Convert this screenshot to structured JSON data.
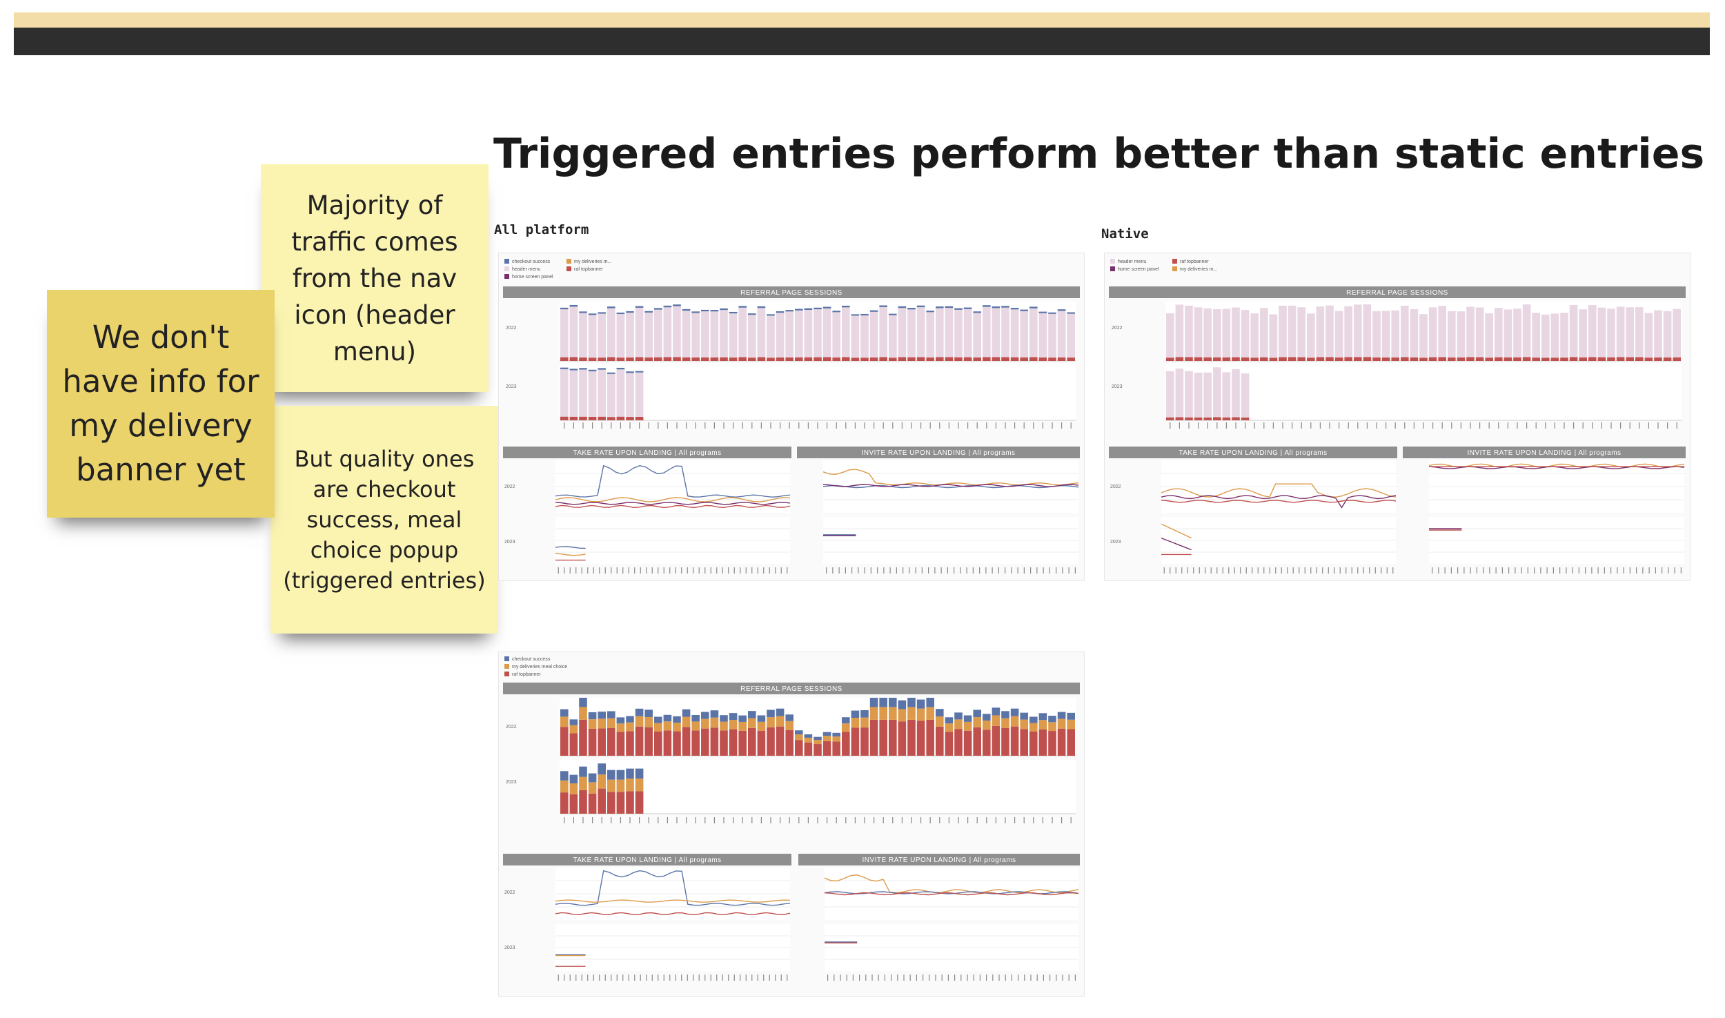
{
  "page": {
    "title": "Triggered entries perform better than static entries"
  },
  "sections": {
    "all_platform": "All platform",
    "native": "Native"
  },
  "stickies": [
    {
      "id": "nav-icon",
      "color": "#fbf3b0",
      "lines": [
        "Majority of",
        "traffic comes",
        "from the nav",
        "icon (header",
        "menu)"
      ]
    },
    {
      "id": "quality",
      "color": "#fbf3b0",
      "lines": [
        "But quality ones",
        "are checkout",
        "success, meal",
        "choice popup",
        "(triggered entries)"
      ]
    },
    {
      "id": "delivery-banner",
      "color": "#ebd36c",
      "lines": [
        "We don't",
        "have info for",
        "my delivery",
        "banner yet"
      ]
    }
  ],
  "dashboards": {
    "headers": {
      "referral": "REFERRAL PAGE SESSIONS",
      "take_rate": "TAKE RATE UPON LANDING | All programs",
      "invite_rate": "INVITE RATE UPON LANDING | All programs"
    },
    "colors": {
      "checkout": "#5b74a8",
      "meal": "#dc9a4a",
      "header": "#e8d6e2",
      "rafbanner": "#c0504d",
      "homescreen": "#7a2e6c"
    },
    "all_platform_legend": [
      "checkout success",
      "my deliveries m...",
      "header menu",
      "raf topbanner",
      "home screen panel"
    ],
    "native_legend": [
      "header menu",
      "raf topbanner",
      "home screen panel",
      "my deliveries m..."
    ],
    "triggered_legend": [
      "checkout success",
      "my deliveries meal choice",
      "raf topbanner"
    ]
  }
}
